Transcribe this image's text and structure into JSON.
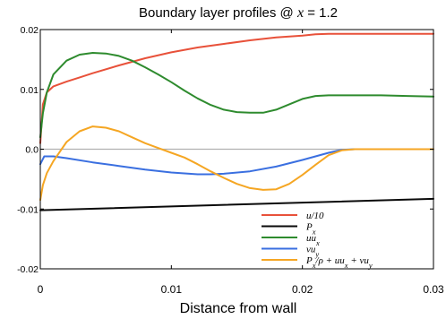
{
  "chart_data": {
    "type": "line",
    "title": "Boundary layer profiles @ x = 1.2",
    "title_parts": {
      "prefix": "Boundary layer profiles @ ",
      "var": "x",
      "suffix": " = 1.2"
    },
    "xlabel": "Distance from wall",
    "ylabel": "",
    "xlim": [
      0,
      0.03
    ],
    "ylim": [
      -0.02,
      0.02
    ],
    "x_ticks": [
      {
        "value": 0,
        "label": "0"
      },
      {
        "value": 0.01,
        "label": "0.01"
      },
      {
        "value": 0.02,
        "label": "0.02"
      },
      {
        "value": 0.03,
        "label": "0.03"
      }
    ],
    "y_ticks": [
      {
        "value": 0.02,
        "label": "0.02"
      },
      {
        "value": 0.01,
        "label": "0.01"
      },
      {
        "value": 0.0,
        "label": "0.0"
      },
      {
        "value": -0.01,
        "label": "-0.01"
      },
      {
        "value": -0.02,
        "label": "-0.02"
      }
    ],
    "grid": false,
    "zero_line": true,
    "legend_position": "bottom-right",
    "series": [
      {
        "name": "u/10",
        "color": "#e8513a",
        "x": [
          0,
          0.0002,
          0.0005,
          0.001,
          0.002,
          0.003,
          0.004,
          0.006,
          0.008,
          0.01,
          0.012,
          0.014,
          0.016,
          0.018,
          0.02,
          0.021,
          0.022,
          0.023,
          0.024,
          0.026,
          0.028,
          0.03
        ],
        "y": [
          0.001,
          0.0075,
          0.0095,
          0.0105,
          0.0113,
          0.012,
          0.0127,
          0.014,
          0.0152,
          0.0162,
          0.017,
          0.0176,
          0.0182,
          0.0187,
          0.019,
          0.0192,
          0.0193,
          0.0193,
          0.0193,
          0.0193,
          0.0193,
          0.0193
        ]
      },
      {
        "name": "P_x",
        "color": "#0a0a0a",
        "x": [
          0,
          0.03
        ],
        "y": [
          -0.0102,
          -0.0083
        ]
      },
      {
        "name": "uu_x",
        "color": "#2e8b2e",
        "x": [
          0,
          0.0002,
          0.0005,
          0.001,
          0.002,
          0.003,
          0.004,
          0.005,
          0.006,
          0.007,
          0.008,
          0.009,
          0.01,
          0.011,
          0.012,
          0.013,
          0.014,
          0.015,
          0.016,
          0.017,
          0.018,
          0.019,
          0.02,
          0.021,
          0.022,
          0.023,
          0.024,
          0.026,
          0.028,
          0.03
        ],
        "y": [
          0.002,
          0.006,
          0.0095,
          0.0125,
          0.0148,
          0.0158,
          0.0161,
          0.016,
          0.0156,
          0.0148,
          0.0137,
          0.0125,
          0.0112,
          0.0098,
          0.0085,
          0.0074,
          0.0066,
          0.0062,
          0.0061,
          0.0061,
          0.0066,
          0.0075,
          0.0084,
          0.0089,
          0.009,
          0.009,
          0.009,
          0.009,
          0.0089,
          0.0088
        ]
      },
      {
        "name": "vu_y",
        "color": "#3a6fe0",
        "x": [
          0,
          0.0003,
          0.001,
          0.002,
          0.004,
          0.006,
          0.008,
          0.01,
          0.012,
          0.013,
          0.014,
          0.016,
          0.018,
          0.02,
          0.022,
          0.023,
          0.024,
          0.026,
          0.028,
          0.03
        ],
        "y": [
          -0.0025,
          -0.0012,
          -0.0012,
          -0.0015,
          -0.0022,
          -0.0028,
          -0.0034,
          -0.0039,
          -0.0042,
          -0.0042,
          -0.0041,
          -0.0037,
          -0.0029,
          -0.0018,
          -0.0006,
          -0.0001,
          0.0,
          0.0,
          0.0,
          0.0
        ]
      },
      {
        "name": "P_x/ρ + uu_x + vu_y",
        "color": "#f5a623",
        "x": [
          0,
          0.0002,
          0.0005,
          0.001,
          0.002,
          0.003,
          0.004,
          0.005,
          0.006,
          0.007,
          0.008,
          0.009,
          0.01,
          0.011,
          0.012,
          0.013,
          0.014,
          0.015,
          0.016,
          0.017,
          0.018,
          0.019,
          0.02,
          0.021,
          0.022,
          0.023,
          0.024,
          0.026,
          0.028,
          0.03
        ],
        "y": [
          -0.0085,
          -0.006,
          -0.004,
          -0.002,
          0.0012,
          0.003,
          0.0038,
          0.0036,
          0.003,
          0.002,
          0.001,
          0.0002,
          -0.0006,
          -0.0014,
          -0.0025,
          -0.0037,
          -0.0048,
          -0.0058,
          -0.0065,
          -0.0068,
          -0.0067,
          -0.0058,
          -0.0043,
          -0.0026,
          -0.001,
          -0.0002,
          0.0,
          0.0,
          0.0,
          0.0
        ]
      }
    ]
  }
}
